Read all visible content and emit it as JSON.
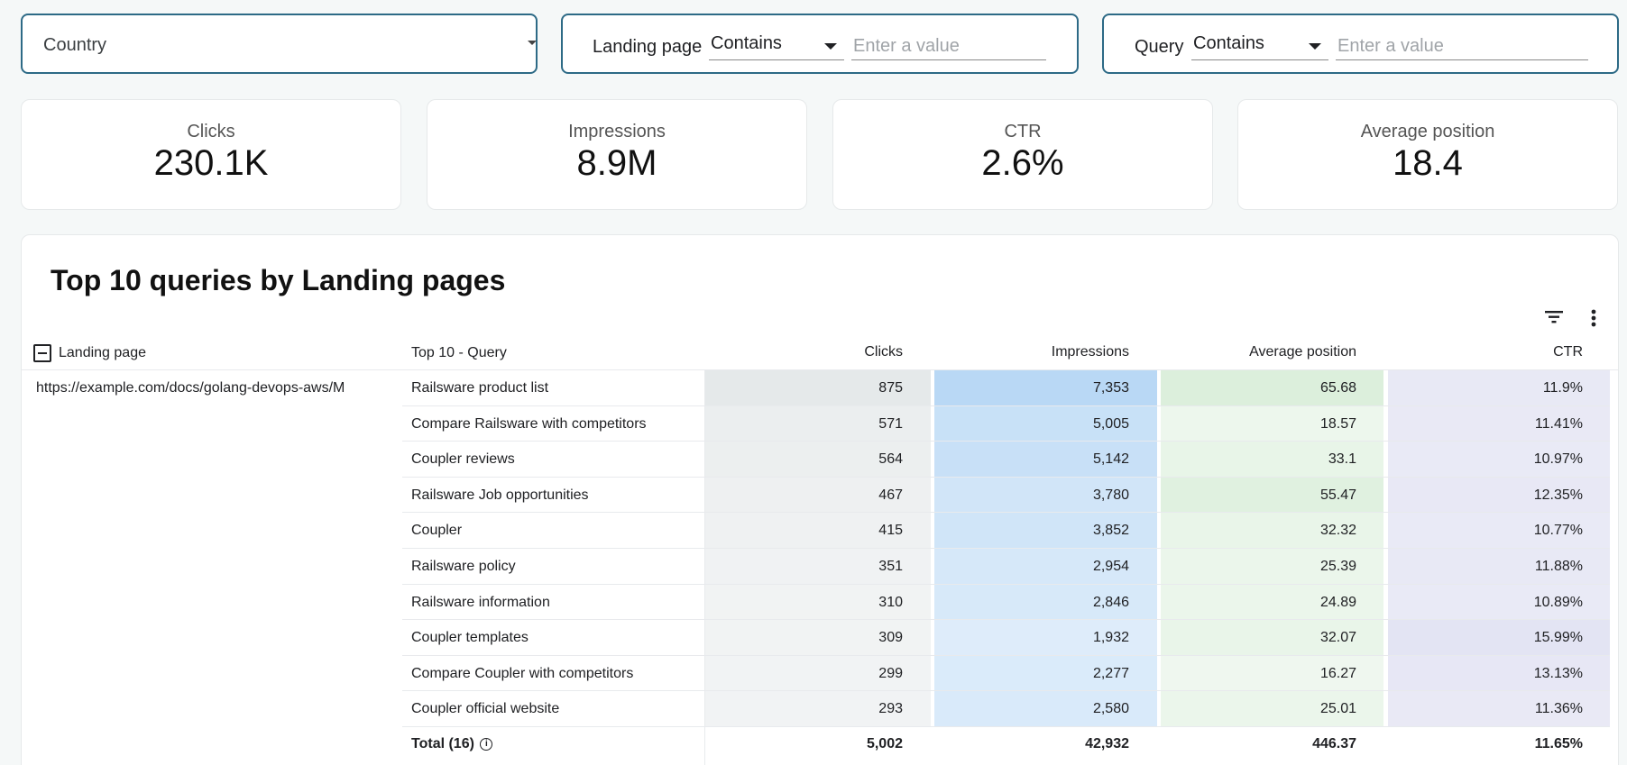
{
  "filters": {
    "country": {
      "label": "Country"
    },
    "landing": {
      "label": "Landing page",
      "operator": "Contains",
      "placeholder": "Enter a value"
    },
    "query": {
      "label": "Query",
      "operator": "Contains",
      "placeholder": "Enter a value"
    }
  },
  "kpis": [
    {
      "label": "Clicks",
      "value": "230.1K"
    },
    {
      "label": "Impressions",
      "value": "8.9M"
    },
    {
      "label": "CTR",
      "value": "2.6%"
    },
    {
      "label": "Average position",
      "value": "18.4"
    }
  ],
  "table": {
    "title": "Top 10 queries by Landing pages",
    "columns": {
      "landing": "Landing page",
      "query": "Top 10 - Query",
      "clicks": "Clicks",
      "impressions": "Impressions",
      "avgpos": "Average position",
      "ctr": "CTR"
    },
    "landing_page": "https://example.com/docs/golang-devops-aws/M",
    "rows": [
      {
        "query": "Railsware product list",
        "clicks": "875",
        "impressions": "7,353",
        "avgpos": "65.68",
        "ctr": "11.9%"
      },
      {
        "query": "Compare Railsware with competitors",
        "clicks": "571",
        "impressions": "5,005",
        "avgpos": "18.57",
        "ctr": "11.41%"
      },
      {
        "query": "Coupler reviews",
        "clicks": "564",
        "impressions": "5,142",
        "avgpos": "33.1",
        "ctr": "10.97%"
      },
      {
        "query": "Railsware Job opportunities",
        "clicks": "467",
        "impressions": "3,780",
        "avgpos": "55.47",
        "ctr": "12.35%"
      },
      {
        "query": "Coupler",
        "clicks": "415",
        "impressions": "3,852",
        "avgpos": "32.32",
        "ctr": "10.77%"
      },
      {
        "query": "Railsware policy",
        "clicks": "351",
        "impressions": "2,954",
        "avgpos": "25.39",
        "ctr": "11.88%"
      },
      {
        "query": "Railsware information",
        "clicks": "310",
        "impressions": "2,846",
        "avgpos": "24.89",
        "ctr": "10.89%"
      },
      {
        "query": "Coupler templates",
        "clicks": "309",
        "impressions": "1,932",
        "avgpos": "32.07",
        "ctr": "15.99%"
      },
      {
        "query": "Compare Coupler with competitors",
        "clicks": "299",
        "impressions": "2,277",
        "avgpos": "16.27",
        "ctr": "13.13%"
      },
      {
        "query": "Coupler official website",
        "clicks": "293",
        "impressions": "2,580",
        "avgpos": "25.01",
        "ctr": "11.36%"
      }
    ],
    "total": {
      "label": "Total (16)",
      "clicks": "5,002",
      "impressions": "42,932",
      "avgpos": "446.37",
      "ctr": "11.65%"
    },
    "heat_colors": {
      "clicks": "#e5e9ea",
      "impressions": "#b9d8f5",
      "avgpos": "#dcefdc",
      "ctr": "#e3e4f3"
    }
  }
}
